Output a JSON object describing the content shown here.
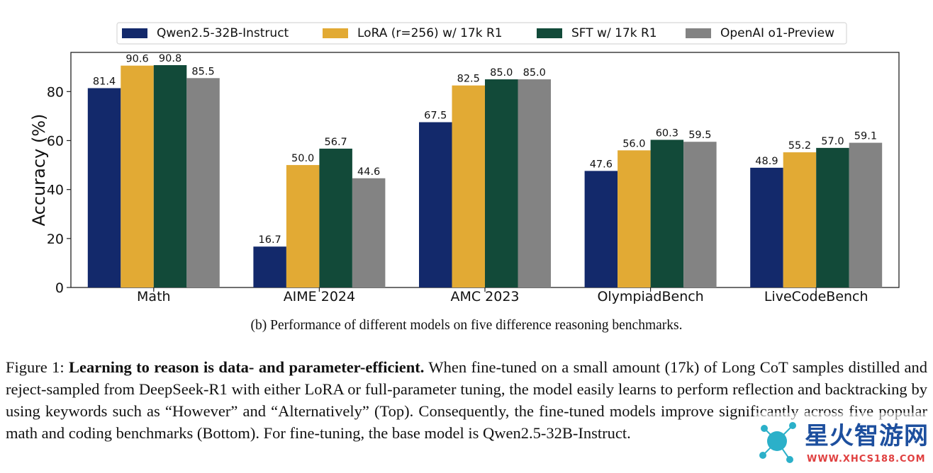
{
  "chart_data": {
    "type": "bar",
    "title": "",
    "xlabel": "",
    "ylabel": "Accuracy (%)",
    "ylim": [
      0,
      96
    ],
    "yticks": [
      0,
      20,
      40,
      60,
      80
    ],
    "categories": [
      "Math",
      "AIME 2024",
      "AMC 2023",
      "OlympiadBench",
      "LiveCodeBench"
    ],
    "series": [
      {
        "name": "Qwen2.5-32B-Instruct",
        "color": "#13296b",
        "values": [
          81.4,
          16.7,
          67.5,
          47.6,
          48.9
        ]
      },
      {
        "name": "LoRA (r=256) w/ 17k R1",
        "color": "#e2aa34",
        "values": [
          90.6,
          50.0,
          82.5,
          56.0,
          55.2
        ]
      },
      {
        "name": "SFT w/ 17k R1",
        "color": "#124a39",
        "values": [
          90.8,
          56.7,
          85.0,
          60.3,
          57.0
        ]
      },
      {
        "name": "OpenAI o1-Preview",
        "color": "#838383",
        "values": [
          85.5,
          44.6,
          85.0,
          59.5,
          59.1
        ]
      }
    ],
    "legend_position": "top-center"
  },
  "subcaption": "(b) Performance of different models on five difference reasoning benchmarks.",
  "figure_caption": {
    "label": "Figure 1:",
    "bold": "Learning to reason is data- and parameter-efficient.",
    "body": "When fine-tuned on a small amount (17k) of Long CoT samples distilled and reject-sampled from DeepSeek-R1 with either LoRA or full-parameter tuning, the model easily learns to perform reflection and backtracking by using keywords such as “However” and “Alternatively” (Top). Consequently, the fine-tuned models improve significantly across five popular math and coding benchmarks (Bottom). For fine-tuning, the base model is Qwen2.5-32B-Instruct."
  },
  "watermark": {
    "text": "星火智游网",
    "url": "WWW.XHCS188.COM"
  }
}
